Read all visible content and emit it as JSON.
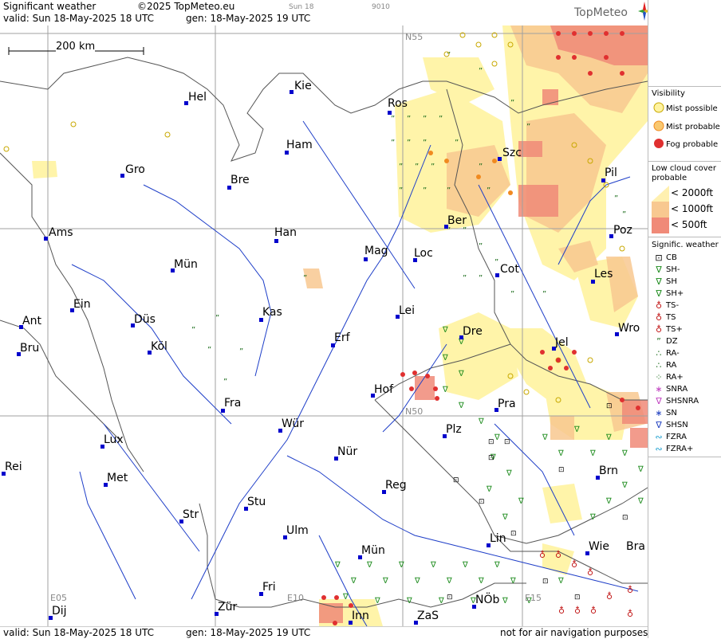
{
  "header": {
    "product": "Significant weather",
    "copyright": "©2025 TopMeteo.eu",
    "day_label": "Sun 18",
    "code": "9010",
    "valid": "valid:  Sun  18-May-2025  18 UTC",
    "gen": "gen: 18-May-2025 19 UTC",
    "logo": "TopMeteo"
  },
  "scale_label": "200 km",
  "grid_labels": {
    "n55": "N55",
    "n50": "N50",
    "e05": "E05",
    "e10": "E10",
    "e15": "E15"
  },
  "cities": [
    {
      "name": "Kie"
    },
    {
      "name": "Hel"
    },
    {
      "name": "Ros"
    },
    {
      "name": "Ham"
    },
    {
      "name": "Szc"
    },
    {
      "name": "Gro"
    },
    {
      "name": "Bre"
    },
    {
      "name": "Pil"
    },
    {
      "name": "Ber"
    },
    {
      "name": "Ams"
    },
    {
      "name": "Han"
    },
    {
      "name": "Poz"
    },
    {
      "name": "Mag"
    },
    {
      "name": "Loc"
    },
    {
      "name": "Mün"
    },
    {
      "name": "Cot"
    },
    {
      "name": "Les"
    },
    {
      "name": "Ein"
    },
    {
      "name": "Kas"
    },
    {
      "name": "Lei"
    },
    {
      "name": "Ant"
    },
    {
      "name": "Düs"
    },
    {
      "name": "Wro"
    },
    {
      "name": "Erf"
    },
    {
      "name": "Dre"
    },
    {
      "name": "Bru"
    },
    {
      "name": "Köl"
    },
    {
      "name": "Jel"
    },
    {
      "name": "Hof"
    },
    {
      "name": "Fra"
    },
    {
      "name": "Pra"
    },
    {
      "name": "Wür"
    },
    {
      "name": "Plz"
    },
    {
      "name": "Lux"
    },
    {
      "name": "Nür"
    },
    {
      "name": "Rei"
    },
    {
      "name": "Met"
    },
    {
      "name": "Brn"
    },
    {
      "name": "Reg"
    },
    {
      "name": "Stu"
    },
    {
      "name": "Str"
    },
    {
      "name": "Ulm"
    },
    {
      "name": "Lin"
    },
    {
      "name": "Wie"
    },
    {
      "name": "Bra"
    },
    {
      "name": "Mün"
    },
    {
      "name": "Fri"
    },
    {
      "name": "NÖb"
    },
    {
      "name": "Dij"
    },
    {
      "name": "Zür"
    },
    {
      "name": "Inn"
    },
    {
      "name": "ZaS"
    }
  ],
  "legend": {
    "visibility_title": "Visibility",
    "visibility": [
      "Mist possible",
      "Mist probable",
      "Fog probable"
    ],
    "lowcloud_title_1": "Low cloud cover",
    "lowcloud_title_2": "probable",
    "lowcloud": [
      "< 2000ft",
      "< 1000ft",
      "<   500ft"
    ],
    "sigwx_title": "Signific. weather",
    "sigwx": [
      "CB",
      "SH-",
      "SH",
      "SH+",
      "TS-",
      "TS",
      "TS+",
      "DZ",
      "RA-",
      "RA",
      "RA+",
      "SNRA",
      "SHSNRA",
      "SN",
      "SHSN",
      "FZRA",
      "FZRA+"
    ]
  },
  "footer": {
    "valid": "valid:  Sun  18-May-2025  18 UTC",
    "gen": "gen: 18-May-2025 19 UTC",
    "note": "not for air navigation purposes"
  },
  "colors": {
    "mist_possible": "#fff3a0",
    "mist_probable": "#f9c870",
    "fog": "#e8504a",
    "low_2000": "#fff0b0",
    "low_1000": "#f8c890",
    "low_500": "#f08a78",
    "city_marker": "#0000cc",
    "rivers": "#1e3ec8",
    "borders": "#555555",
    "rain_symbols": "#1a6b1a",
    "thunder": "#c01010"
  }
}
